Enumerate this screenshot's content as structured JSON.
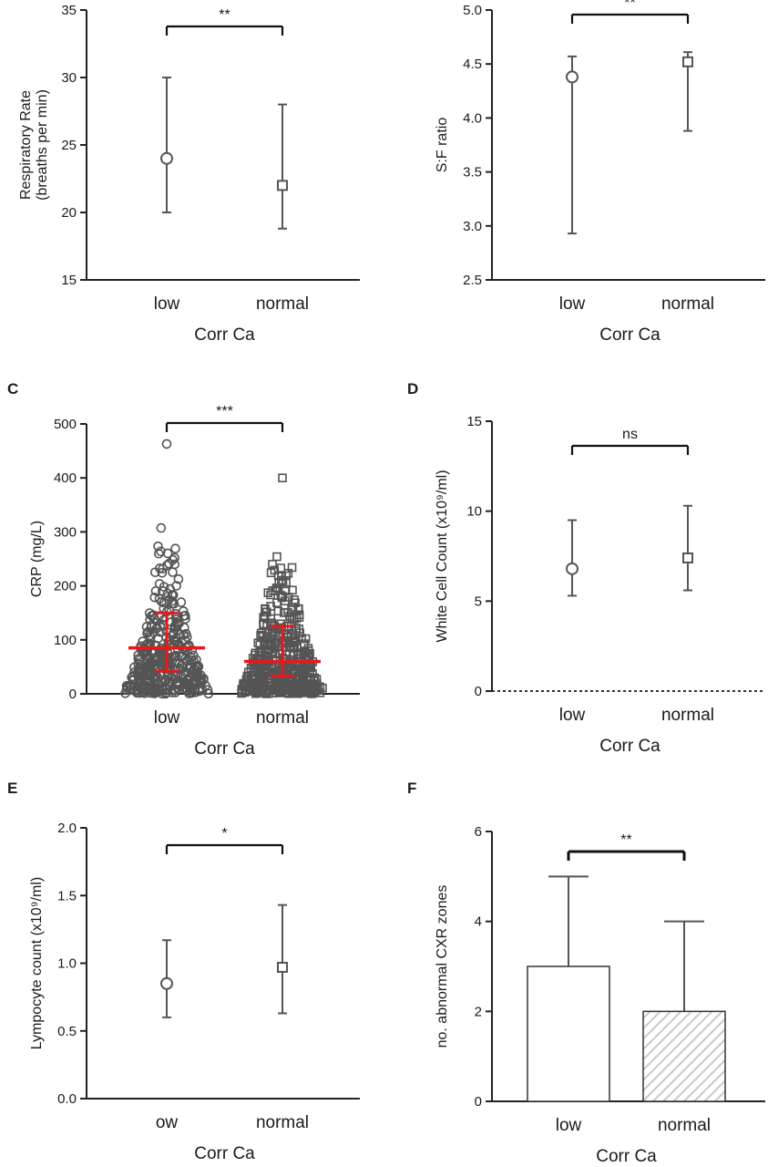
{
  "chart_data": [
    {
      "id": "A",
      "panel_label": "",
      "type": "scatter",
      "title": "",
      "xlabel": "Corr Ca",
      "ylabel": "Respiratory Rate (breaths per min)",
      "ylabel_lines": [
        "Respiratory Rate",
        "(breaths per min)"
      ],
      "categories": [
        "low",
        "normal"
      ],
      "ylim": [
        15,
        35
      ],
      "yticks": [
        15,
        20,
        25,
        30,
        35
      ],
      "ytick_labels": [
        "15",
        "20",
        "25",
        "30",
        "35"
      ],
      "points": [
        {
          "category": "low",
          "marker": "circle",
          "median": 24,
          "lower": 20,
          "upper": 30
        },
        {
          "category": "normal",
          "marker": "square",
          "median": 22,
          "lower": 18.8,
          "upper": 28
        }
      ],
      "significance": "**"
    },
    {
      "id": "B",
      "panel_label": "",
      "type": "scatter",
      "title": "",
      "xlabel": "Corr Ca",
      "ylabel": "S:F ratio",
      "categories": [
        "low",
        "normal"
      ],
      "ylim": [
        2.5,
        5.0
      ],
      "yticks": [
        2.5,
        3.0,
        3.5,
        4.0,
        4.5,
        5.0
      ],
      "ytick_labels": [
        "2.5",
        "3.0",
        "3.5",
        "4.0",
        "4.5",
        "5.0"
      ],
      "points": [
        {
          "category": "low",
          "marker": "circle",
          "median": 4.38,
          "lower": 2.93,
          "upper": 4.57
        },
        {
          "category": "normal",
          "marker": "square",
          "median": 4.52,
          "lower": 3.88,
          "upper": 4.61
        }
      ],
      "significance": "**"
    },
    {
      "id": "C",
      "panel_label": "C",
      "type": "scatter",
      "title": "",
      "xlabel": "Corr Ca",
      "ylabel": "CRP (mg/L)",
      "categories": [
        "low",
        "normal"
      ],
      "ylim": [
        0,
        500
      ],
      "yticks": [
        0,
        100,
        200,
        300,
        400,
        500
      ],
      "ytick_labels": [
        "0",
        "100",
        "200",
        "300",
        "400",
        "500"
      ],
      "points": [
        {
          "category": "low",
          "marker": "circle",
          "median": 85,
          "lower": 42,
          "upper": 150,
          "max": 463
        },
        {
          "category": "normal",
          "marker": "square",
          "median": 60,
          "lower": 33,
          "upper": 125,
          "max": 400
        }
      ],
      "individual_points_color": "#555555",
      "summary_color": "#e8181b",
      "significance": "***"
    },
    {
      "id": "D",
      "panel_label": "D",
      "type": "scatter",
      "title": "",
      "xlabel": "Corr Ca",
      "ylabel": "White Cell Count (x10⁹/ml)",
      "categories": [
        "low",
        "normal"
      ],
      "ylim": [
        0,
        15
      ],
      "yticks": [
        0,
        5,
        10,
        15
      ],
      "ytick_labels": [
        "0",
        "5",
        "10",
        "15"
      ],
      "points": [
        {
          "category": "low",
          "marker": "circle",
          "median": 6.8,
          "lower": 5.3,
          "upper": 9.5
        },
        {
          "category": "normal",
          "marker": "square",
          "median": 7.4,
          "lower": 5.6,
          "upper": 10.3
        }
      ],
      "significance": "ns"
    },
    {
      "id": "E",
      "panel_label": "E",
      "type": "scatter",
      "title": "",
      "xlabel": "Corr Ca",
      "ylabel": "Lympocyte count (x10⁹/ml)",
      "categories": [
        "ow",
        "normal"
      ],
      "ylim": [
        0,
        2.0
      ],
      "yticks": [
        0,
        0.5,
        1.0,
        1.5,
        2.0
      ],
      "ytick_labels": [
        "0.0",
        "0.5",
        "1.0",
        "1.5",
        "2.0"
      ],
      "points": [
        {
          "category": "ow",
          "marker": "circle",
          "median": 0.85,
          "lower": 0.6,
          "upper": 1.17
        },
        {
          "category": "normal",
          "marker": "square",
          "median": 0.97,
          "lower": 0.63,
          "upper": 1.43
        }
      ],
      "significance": "*"
    },
    {
      "id": "F",
      "panel_label": "F",
      "type": "bar",
      "title": "",
      "xlabel": "Corr Ca",
      "ylabel": "no. abnormal CXR zones",
      "categories": [
        "low",
        "normal"
      ],
      "ylim": [
        0,
        6
      ],
      "yticks": [
        0,
        2,
        4,
        6
      ],
      "ytick_labels": [
        "0",
        "2",
        "4",
        "6"
      ],
      "values": [
        3,
        2
      ],
      "error_upper": [
        5,
        4
      ],
      "bar_styles": [
        "open",
        "hatched"
      ],
      "significance": "**"
    }
  ]
}
